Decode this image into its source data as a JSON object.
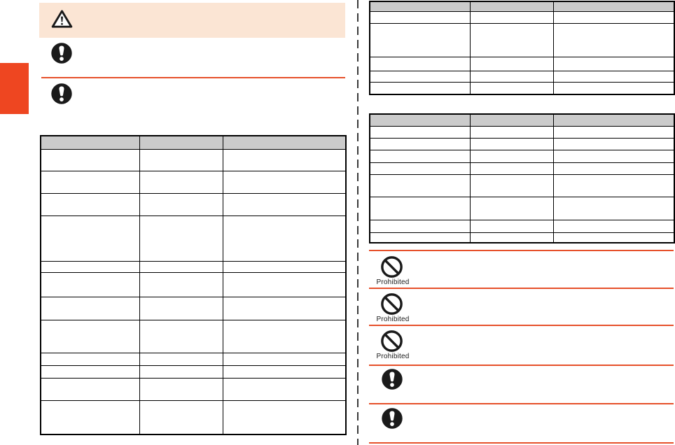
{
  "colors": {
    "accent_rule": "#e6502a",
    "side_tab": "#ee4621",
    "banner_background": "#fbe5d4",
    "table_header_fill": "#cbcbcb",
    "table_border": "#000000",
    "divider": "#3a3a3a",
    "icon_black": "#1a1a1a"
  },
  "icons": {
    "warning": "warning-triangle-icon",
    "mandatory": "mandatory-action-icon",
    "prohibited": "prohibited-icon"
  },
  "left_column": {
    "warning_banner": {
      "icon": "warning-triangle-icon",
      "text": ""
    },
    "notices": [
      {
        "icon": "mandatory-action-icon",
        "label": ""
      },
      {
        "icon": "mandatory-action-icon",
        "label": ""
      }
    ],
    "table": {
      "headers": [
        "",
        "",
        ""
      ],
      "rows": [
        [
          "",
          "",
          ""
        ],
        [
          "",
          "",
          ""
        ],
        [
          "",
          "",
          ""
        ],
        [
          "",
          "",
          ""
        ],
        [
          "",
          "",
          ""
        ],
        [
          "",
          "",
          ""
        ],
        [
          "",
          "",
          ""
        ],
        [
          "",
          "",
          ""
        ],
        [
          "",
          "",
          ""
        ],
        [
          "",
          "",
          ""
        ],
        [
          "",
          "",
          ""
        ],
        [
          "",
          "",
          ""
        ]
      ]
    }
  },
  "right_column": {
    "table_top": {
      "headers": [
        "",
        "",
        ""
      ],
      "rows": [
        [
          "",
          "",
          ""
        ],
        [
          "",
          "",
          ""
        ],
        [
          "",
          "",
          ""
        ],
        [
          "",
          "",
          ""
        ],
        [
          "",
          "",
          ""
        ]
      ]
    },
    "table_middle": {
      "headers": [
        "",
        "",
        ""
      ],
      "rows": [
        [
          "",
          "",
          ""
        ],
        [
          "",
          "",
          ""
        ],
        [
          "",
          "",
          ""
        ],
        [
          "",
          "",
          ""
        ],
        [
          "",
          "",
          ""
        ],
        [
          "",
          "",
          ""
        ],
        [
          "",
          "",
          ""
        ],
        [
          "",
          "",
          ""
        ]
      ]
    },
    "safety_items": [
      {
        "icon": "prohibited-icon",
        "label": "Prohibited"
      },
      {
        "icon": "prohibited-icon",
        "label": "Prohibited"
      },
      {
        "icon": "prohibited-icon",
        "label": "Prohibited"
      },
      {
        "icon": "mandatory-action-icon",
        "label": ""
      },
      {
        "icon": "mandatory-action-icon",
        "label": ""
      }
    ]
  }
}
